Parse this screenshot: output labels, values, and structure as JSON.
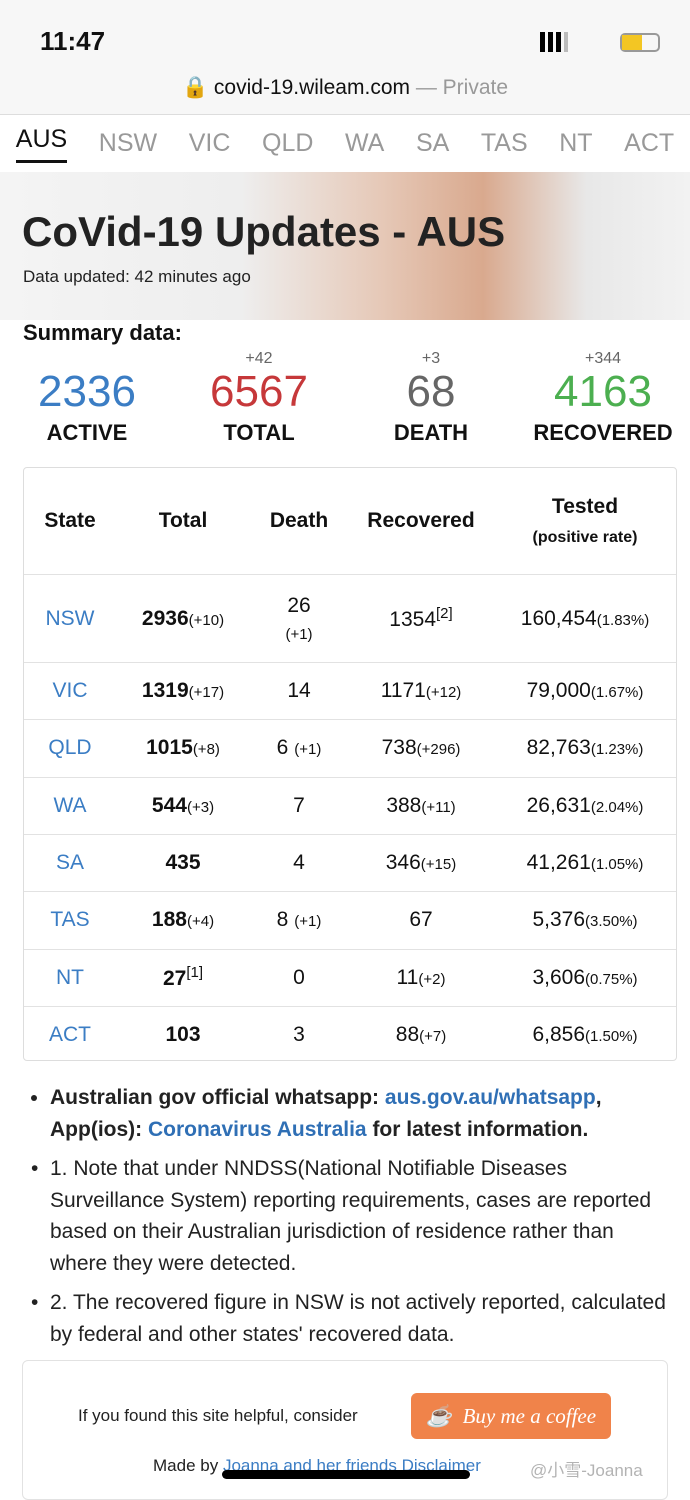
{
  "status": {
    "time": "11:47"
  },
  "browser": {
    "url": "covid-19.wileam.com",
    "private": "— Private"
  },
  "tabs": [
    "AUS",
    "NSW",
    "VIC",
    "QLD",
    "WA",
    "SA",
    "TAS",
    "NT",
    "ACT"
  ],
  "hero": {
    "title": "CoVid-19 Updates - AUS",
    "updated": "Data updated: 42 minutes ago"
  },
  "summary": {
    "label": "Summary data:",
    "items": [
      {
        "value": "2336",
        "label": "ACTIVE"
      },
      {
        "delta": "+42",
        "value": "6567",
        "label": "TOTAL"
      },
      {
        "delta": "+3",
        "value": "68",
        "label": "DEATH"
      },
      {
        "delta": "+344",
        "value": "4163",
        "label": "RECOVERED"
      }
    ]
  },
  "table": {
    "headers": [
      "State",
      "Total",
      "Death",
      "Recovered",
      "Tested"
    ],
    "tested_sub": "(positive rate)",
    "rows": [
      {
        "state": "NSW",
        "total": {
          "v": "2936",
          "d": "(+10)"
        },
        "death": {
          "v": "26",
          "d": "(+1)"
        },
        "recovered": {
          "v": "1354",
          "sup": "[2]"
        },
        "tested": {
          "v": "160,454",
          "d": "(1.83%)"
        }
      },
      {
        "state": "VIC",
        "total": {
          "v": "1319",
          "d": "(+17)"
        },
        "death": {
          "v": "14"
        },
        "recovered": {
          "v": "1171",
          "d": "(+12)"
        },
        "tested": {
          "v": "79,000",
          "d": "(1.67%)"
        }
      },
      {
        "state": "QLD",
        "total": {
          "v": "1015",
          "d": "(+8)"
        },
        "death": {
          "v": "6",
          "d": "(+1)"
        },
        "recovered": {
          "v": "738",
          "d": "(+296)"
        },
        "tested": {
          "v": "82,763",
          "d": "(1.23%)"
        }
      },
      {
        "state": "WA",
        "total": {
          "v": "544",
          "d": "(+3)"
        },
        "death": {
          "v": "7"
        },
        "recovered": {
          "v": "388",
          "d": "(+11)"
        },
        "tested": {
          "v": "26,631",
          "d": "(2.04%)"
        }
      },
      {
        "state": "SA",
        "total": {
          "v": "435"
        },
        "death": {
          "v": "4"
        },
        "recovered": {
          "v": "346",
          "d": "(+15)"
        },
        "tested": {
          "v": "41,261",
          "d": "(1.05%)"
        }
      },
      {
        "state": "TAS",
        "total": {
          "v": "188",
          "d": "(+4)"
        },
        "death": {
          "v": "8",
          "d": "(+1)"
        },
        "recovered": {
          "v": "67"
        },
        "tested": {
          "v": "5,376",
          "d": "(3.50%)"
        }
      },
      {
        "state": "NT",
        "total": {
          "v": "27",
          "sup": "[1]"
        },
        "death": {
          "v": "0"
        },
        "recovered": {
          "v": "11",
          "d": "(+2)"
        },
        "tested": {
          "v": "3,606",
          "d": "(0.75%)"
        }
      },
      {
        "state": "ACT",
        "total": {
          "v": "103"
        },
        "death": {
          "v": "3"
        },
        "recovered": {
          "v": "88",
          "d": "(+7)"
        },
        "tested": {
          "v": "6,856",
          "d": "(1.50%)"
        }
      }
    ]
  },
  "notes": [
    {
      "parts": [
        {
          "b": "Australian gov official whatsapp: "
        },
        {
          "a": "aus.gov.au/whatsapp"
        },
        {
          "b": ", App(ios): "
        },
        {
          "a": "Coronavirus Australia"
        },
        {
          "b": " for latest information."
        }
      ]
    },
    {
      "text": "1. Note that under NNDSS(National Notifiable Diseases Surveillance System) reporting requirements, cases are reported based on their Australian jurisdiction of residence rather than where they were detected."
    },
    {
      "text": "2. The recovered figure in NSW is not actively reported, calculated by federal and other states' recovered data."
    }
  ],
  "footer": {
    "prompt": "If you found this site helpful, consider",
    "button": "Buy me a coffee",
    "made_by": "Made by",
    "link": "Joanna and her friends",
    "disclaimer": "Disclaimer"
  },
  "watermark": "@小雪-Joanna"
}
